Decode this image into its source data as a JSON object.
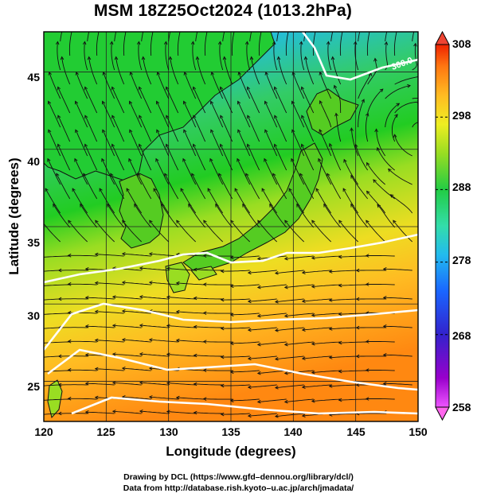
{
  "title": "MSM 18Z25Oct2024 (1013.2hPa)",
  "x_axis": {
    "label": "Longitude (degrees)",
    "ticks": [
      "120",
      "125",
      "130",
      "135",
      "140",
      "145",
      "150"
    ],
    "range": [
      120,
      150
    ]
  },
  "y_axis": {
    "label": "Latitude  (degrees)",
    "ticks": [
      "25",
      "30",
      "35",
      "40",
      "45"
    ],
    "range": [
      22.4,
      47.6
    ]
  },
  "colorbar": {
    "ticks": [
      "308",
      "298",
      "288",
      "278",
      "268",
      "258"
    ],
    "range": [
      258,
      308
    ],
    "colors": [
      "#ee55ff",
      "#9900cc",
      "#3322cc",
      "#1a66ff",
      "#22bbee",
      "#33ddaa",
      "#22cc44",
      "#99dd22",
      "#eeee22",
      "#ffbb22",
      "#ff7711",
      "#ee2200"
    ]
  },
  "contour_label": "300.0",
  "credits": {
    "line1": "Drawing by DCL (https://www.gfd–dennou.org/library/dcl/)",
    "line2": "Data from http://database.rish.kyoto–u.ac.jp/arch/jmadata/"
  }
}
